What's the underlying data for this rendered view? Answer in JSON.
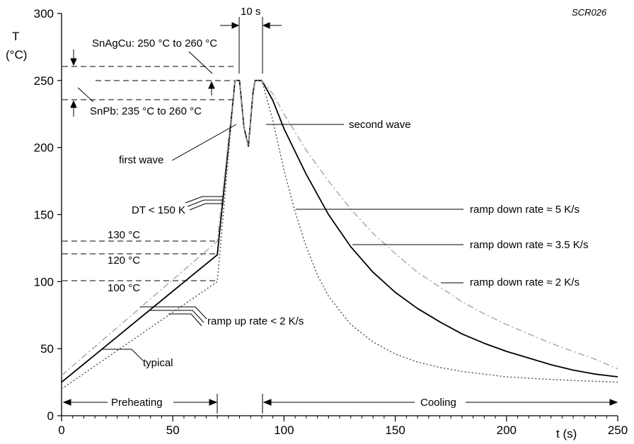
{
  "chart_data": {
    "type": "line",
    "figure_code": "SCR026",
    "xlabel": "t (s)",
    "ylabel_line1": "T",
    "ylabel_line2": "(°C)",
    "xlim": [
      0,
      250
    ],
    "ylim": [
      0,
      300
    ],
    "x_ticks": [
      0,
      50,
      100,
      150,
      200,
      250
    ],
    "y_ticks": [
      0,
      50,
      100,
      150,
      200,
      250,
      300
    ],
    "series": [
      {
        "color": "#000000",
        "dash": "",
        "points": [
          [
            0,
            25
          ],
          [
            70,
            120
          ],
          [
            78,
            250
          ],
          [
            80,
            250
          ],
          [
            82,
            215
          ],
          [
            84,
            201
          ],
          [
            86,
            240
          ],
          [
            87,
            250
          ],
          [
            90,
            250
          ],
          [
            95,
            235
          ],
          [
            100,
            214
          ],
          [
            110,
            180
          ],
          [
            120,
            150
          ],
          [
            130,
            126
          ],
          [
            140,
            107
          ],
          [
            150,
            92
          ],
          [
            160,
            80
          ],
          [
            170,
            70
          ],
          [
            180,
            61
          ],
          [
            190,
            54
          ],
          [
            200,
            48
          ],
          [
            210,
            43
          ],
          [
            220,
            38
          ],
          [
            230,
            34
          ],
          [
            240,
            31
          ],
          [
            250,
            29
          ]
        ]
      },
      {
        "color": "#aaaaaa",
        "dash": "9 4 2 4",
        "points": [
          [
            0,
            30
          ],
          [
            70,
            130
          ],
          [
            78,
            250
          ],
          [
            80,
            250
          ],
          [
            82,
            215
          ],
          [
            84,
            201
          ],
          [
            86,
            240
          ],
          [
            87,
            250
          ],
          [
            90,
            250
          ],
          [
            95,
            240
          ],
          [
            100,
            225
          ],
          [
            110,
            198
          ],
          [
            120,
            175
          ],
          [
            130,
            154
          ],
          [
            140,
            136
          ],
          [
            150,
            121
          ],
          [
            160,
            107
          ],
          [
            170,
            96
          ],
          [
            180,
            85
          ],
          [
            190,
            76
          ],
          [
            200,
            68
          ],
          [
            210,
            61
          ],
          [
            220,
            54
          ],
          [
            230,
            48
          ],
          [
            240,
            42
          ],
          [
            250,
            35
          ]
        ]
      },
      {
        "color": "#555555",
        "dash": "2 3",
        "points": [
          [
            0,
            20
          ],
          [
            70,
            100
          ],
          [
            78,
            250
          ],
          [
            80,
            250
          ],
          [
            82,
            215
          ],
          [
            84,
            201
          ],
          [
            86,
            240
          ],
          [
            87,
            250
          ],
          [
            90,
            250
          ],
          [
            95,
            220
          ],
          [
            100,
            183
          ],
          [
            105,
            152
          ],
          [
            110,
            126
          ],
          [
            115,
            105
          ],
          [
            120,
            89
          ],
          [
            130,
            68
          ],
          [
            140,
            55
          ],
          [
            150,
            46
          ],
          [
            160,
            40
          ],
          [
            170,
            36
          ],
          [
            180,
            33
          ],
          [
            190,
            31
          ],
          [
            200,
            29
          ],
          [
            220,
            27
          ],
          [
            250,
            25
          ]
        ]
      }
    ],
    "labels": {
      "sac": "SnAgCu: 250 °C  to  260 °C",
      "snpb": "SnPb: 235 °C  to  260 °C",
      "ten_s": "10 s",
      "second_wave": "second wave",
      "first_wave": "first wave",
      "dt": "DT < 150 K",
      "t130": "130 °C",
      "t120": "120 °C",
      "t100": "100 °C",
      "ramp_up": "ramp up rate < 2 K/s",
      "typical": "typical",
      "rd5": "ramp down rate ≈  5 K/s",
      "rd35": "ramp down rate ≈  3.5 K/s",
      "rd2": "ramp down rate ≈  2 K/s",
      "preheating": "Preheating",
      "cooling": "Cooling"
    }
  }
}
